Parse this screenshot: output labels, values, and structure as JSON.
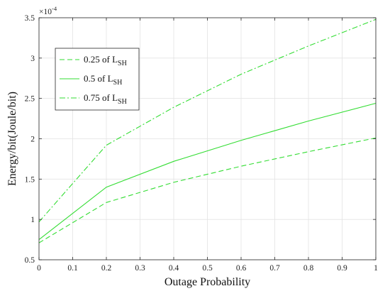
{
  "chart_data": {
    "type": "line",
    "xlabel": "Outage Probability",
    "ylabel": "Energy/bit(Joule/bit)",
    "y_multiplier": {
      "base": "×10",
      "exponent": "-4"
    },
    "xlim": [
      0,
      1
    ],
    "ylim": [
      0.5,
      3.5
    ],
    "xticks": [
      "0",
      "0.1",
      "0.2",
      "0.3",
      "0.4",
      "0.5",
      "0.6",
      "0.7",
      "0.8",
      "0.9",
      "1"
    ],
    "yticks": [
      "0.5",
      "1",
      "1.5",
      "2",
      "2.5",
      "3",
      "3.5"
    ],
    "grid": true,
    "legend_position": "top-left",
    "x": [
      0,
      0.2,
      0.4,
      0.6,
      0.8,
      1.0
    ],
    "series": [
      {
        "name": "0.25 of L",
        "name_sub": "SH",
        "style": "dashed",
        "values": [
          0.71,
          1.21,
          1.46,
          1.66,
          1.84,
          2.01
        ]
      },
      {
        "name": "0.5 of L",
        "name_sub": "SH",
        "style": "solid",
        "values": [
          0.75,
          1.4,
          1.72,
          1.98,
          2.22,
          2.44
        ]
      },
      {
        "name": "0.75 of L",
        "name_sub": "SH",
        "style": "dashdot",
        "values": [
          0.97,
          1.92,
          2.39,
          2.8,
          3.15,
          3.48
        ]
      }
    ],
    "line_color": "#33dd33"
  }
}
